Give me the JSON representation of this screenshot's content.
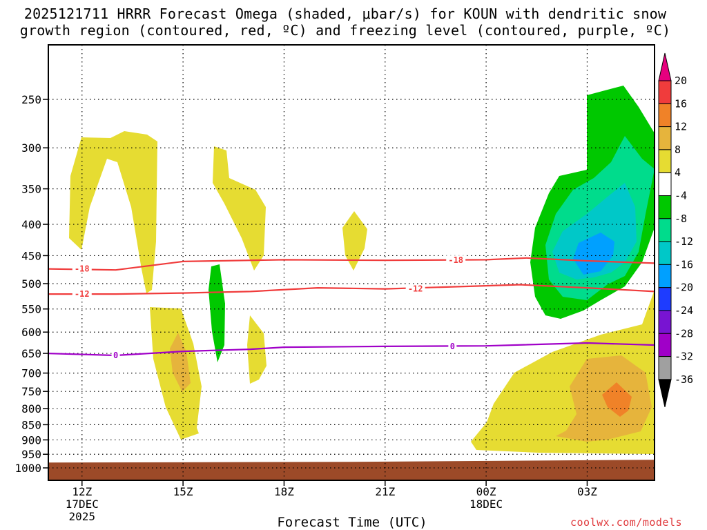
{
  "chart_data": {
    "type": "contour",
    "title_line1": "2025121711 HRRR Forecast Omega (shaded, μbar/s) for KOUN with dendritic snow",
    "title_line2": "growth region (contoured, red, ºC) and freezing level (contoured, purple, ºC)",
    "xlabel": "Forecast Time (UTC)",
    "credit": "coolwx.com/models",
    "x_ticks": [
      {
        "hour": 12,
        "label": "12Z",
        "date": "17DEC",
        "year": "2025"
      },
      {
        "hour": 15,
        "label": "15Z",
        "date": "",
        "year": ""
      },
      {
        "hour": 18,
        "label": "18Z",
        "date": "",
        "year": ""
      },
      {
        "hour": 21,
        "label": "21Z",
        "date": "",
        "year": ""
      },
      {
        "hour": 24,
        "label": "00Z",
        "date": "18DEC",
        "year": ""
      },
      {
        "hour": 27,
        "label": "03Z",
        "date": "",
        "year": ""
      }
    ],
    "x_range_hours": [
      11,
      29
    ],
    "y_axis": "pressure (mb)",
    "y_ticks": [
      250,
      300,
      350,
      400,
      450,
      500,
      550,
      600,
      650,
      700,
      750,
      800,
      850,
      900,
      950,
      1000
    ],
    "y_range_mb": [
      200,
      1025
    ],
    "colorbar": {
      "labels": [
        "20",
        "16",
        "12",
        "8",
        "4",
        "-4",
        "-8",
        "-12",
        "-16",
        "-20",
        "-24",
        "-28",
        "-32",
        "-36"
      ],
      "colors": [
        "#e6007e",
        "#f03c3c",
        "#f08228",
        "#e6b43c",
        "#e6dc32",
        "#ffffff",
        "#00c800",
        "#00dc8c",
        "#00c8c8",
        "#00a0ff",
        "#1e3cff",
        "#7814d2",
        "#a000c8",
        "#a0a0a0",
        "#000000"
      ]
    },
    "contours": {
      "dgz_minus18": {
        "label": "-18",
        "color": "#f03c3c",
        "x_hours": [
          11,
          13,
          15,
          18,
          21,
          24,
          25.2,
          27,
          29
        ],
        "p_mb": [
          473,
          475,
          460,
          457,
          458,
          457,
          454,
          459,
          463
        ]
      },
      "dgz_minus12": {
        "label": "-12",
        "color": "#f03c3c",
        "x_hours": [
          11,
          13,
          15,
          17,
          19,
          21,
          24,
          25,
          27,
          29
        ],
        "p_mb": [
          520,
          520,
          518,
          515,
          508,
          510,
          504,
          502,
          508,
          515
        ]
      },
      "freezing_0": {
        "label": "0",
        "color": "#a000c8",
        "x_hours": [
          11,
          13,
          15,
          17,
          18,
          21,
          24,
          27,
          29
        ],
        "p_mb": [
          650,
          655,
          645,
          640,
          635,
          633,
          632,
          625,
          630
        ]
      }
    },
    "labels_at": {
      "dgz_minus18": [
        [
          12,
          473
        ],
        [
          23.1,
          458
        ]
      ],
      "dgz_minus12": [
        [
          12,
          520
        ],
        [
          21.9,
          510
        ]
      ],
      "freezing_0": [
        [
          13,
          655
        ],
        [
          23.0,
          633
        ]
      ]
    },
    "ground_surface_mb": 975,
    "ground_color": "#9c4a28"
  }
}
